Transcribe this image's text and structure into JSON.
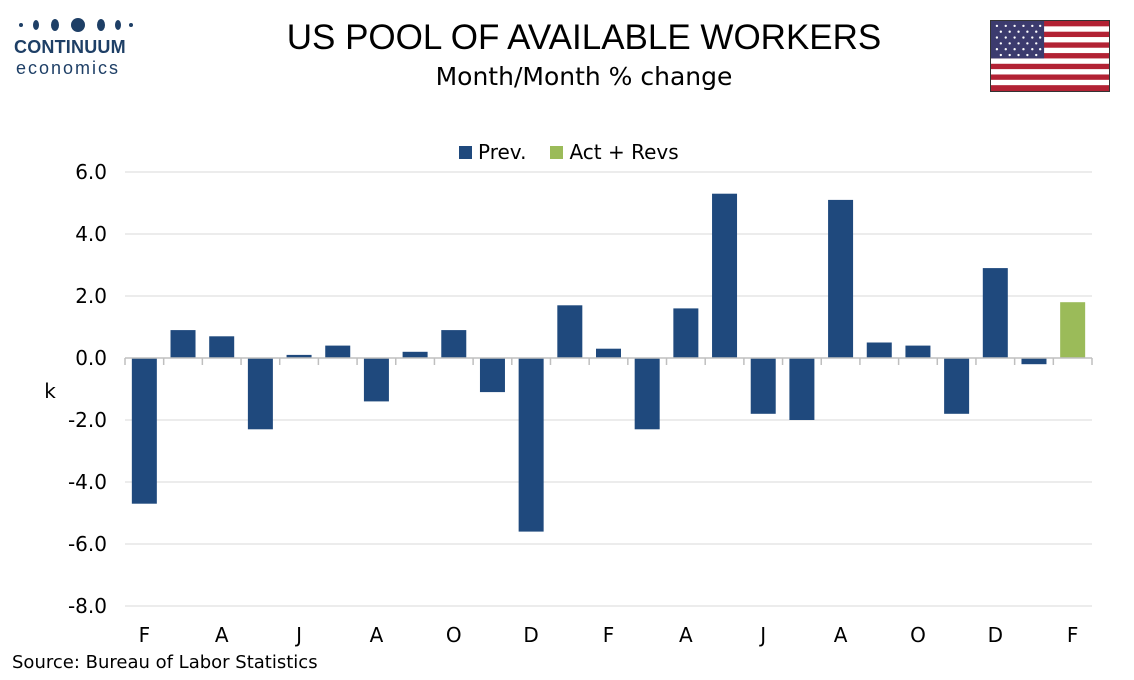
{
  "logo": {
    "name": "CONTINUUM",
    "sub": "economics"
  },
  "header": {
    "title": "US POOL OF AVAILABLE WORKERS",
    "subtitle": "Month/Month % change"
  },
  "source": "Source: Bureau of Labor Statistics",
  "colors": {
    "prev": "#1f497d",
    "act": "#9bbb59",
    "grid": "#d9d9d9",
    "logo": "#1e3f66"
  },
  "chart_data": {
    "type": "bar",
    "ylabel": "k",
    "ylim": [
      -8,
      6
    ],
    "yticks": [
      "6.0",
      "4.0",
      "2.0",
      "0.0",
      "-2.0",
      "-4.0",
      "-6.0",
      "-8.0"
    ],
    "grid": true,
    "legend_position": "top",
    "xtick_labels": [
      "F",
      "A",
      "J",
      "A",
      "O",
      "D",
      "F",
      "A",
      "J",
      "A",
      "O",
      "D",
      "F"
    ],
    "series": [
      {
        "name": "Prev.",
        "values": [
          -4.7,
          0.9,
          0.7,
          -2.3,
          0.1,
          0.4,
          -1.4,
          0.2,
          0.9,
          -1.1,
          -5.6,
          1.7,
          0.3,
          -2.3,
          1.6,
          5.3,
          -1.8,
          -2.0,
          5.1,
          0.5,
          0.4,
          -1.8,
          2.9,
          -0.2,
          null
        ]
      },
      {
        "name": "Act + Revs",
        "values": [
          null,
          null,
          null,
          null,
          null,
          null,
          null,
          null,
          null,
          null,
          null,
          null,
          null,
          null,
          null,
          null,
          null,
          null,
          null,
          null,
          null,
          null,
          null,
          null,
          1.8
        ]
      }
    ]
  }
}
